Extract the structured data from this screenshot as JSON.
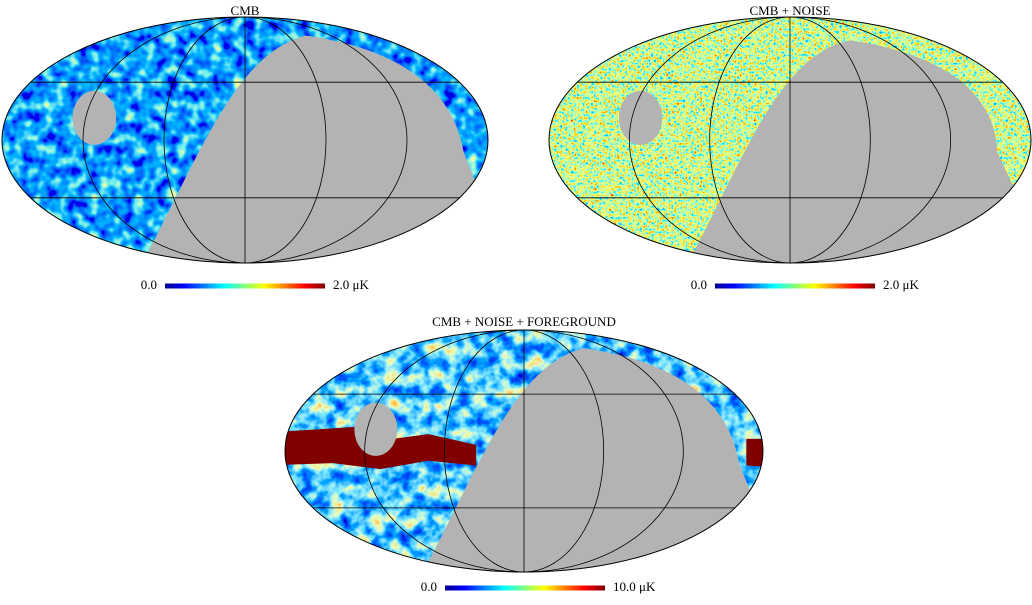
{
  "panels": [
    {
      "title": "CMB",
      "colorbar": {
        "min": "0.0",
        "max": "2.0 μK"
      }
    },
    {
      "title": "CMB + NOISE",
      "colorbar": {
        "min": "0.0",
        "max": "2.0 μK"
      }
    },
    {
      "title": "CMB + NOISE + FOREGROUND",
      "colorbar": {
        "min": "0.0",
        "max": "10.0 μK"
      }
    }
  ]
}
